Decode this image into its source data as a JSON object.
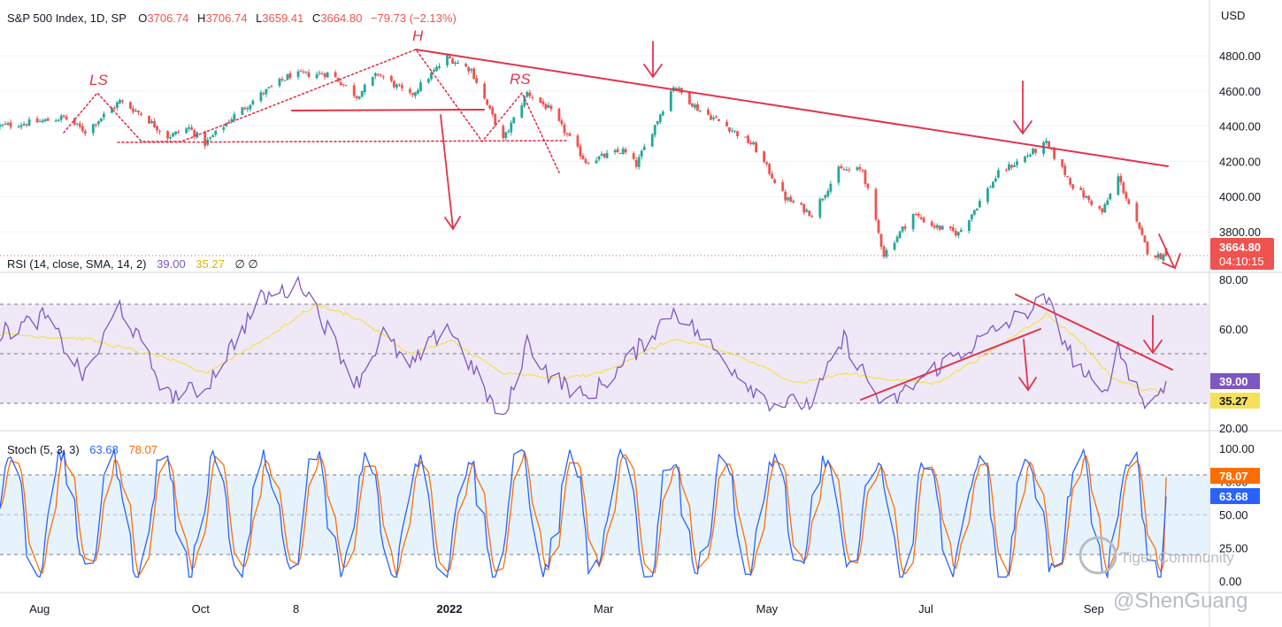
{
  "legend": {
    "main": {
      "name": "S&P 500 Index, 1D, SP",
      "o_label": "O",
      "o": "3706.74",
      "h_label": "H",
      "h": "3706.74",
      "l_label": "L",
      "l": "3659.41",
      "c_label": "C",
      "c": "3664.80",
      "change": "−79.73 (−2.13%)"
    },
    "rsi": {
      "name": "RSI (14, close, SMA, 14, 2)",
      "v1": "39.00",
      "v2": "35.27",
      "extra": "∅ ∅"
    },
    "stoch": {
      "name": "Stoch (5, 3, 3)",
      "v1": "63.68",
      "v2": "78.07"
    }
  },
  "axis": {
    "currency": "USD",
    "price_ticks": [
      "4800.00",
      "4600.00",
      "4400.00",
      "4200.00",
      "4000.00",
      "3800.00"
    ],
    "rsi_ticks": [
      "80.00",
      "60.00",
      "20.00"
    ],
    "stoch_ticks": [
      "100.00",
      "75.00",
      "50.00",
      "25.00",
      "0.00"
    ],
    "x_ticks": [
      "Aug",
      "Oct",
      "8",
      "2022",
      "Mar",
      "May",
      "Jul",
      "Sep"
    ]
  },
  "badges": {
    "price": "3664.80",
    "countdown": "04:10:15",
    "rsi1": "39.00",
    "rsi2": "35.27",
    "stoch1": "78.07",
    "stoch2": "63.68"
  },
  "patterns": {
    "ls": "LS",
    "h": "H",
    "rs": "RS"
  },
  "watermark": {
    "line1": "Tiger Community",
    "line2": "@ShenGuang"
  },
  "colors": {
    "up": "#26a69a",
    "down": "#ef5350",
    "rsi": "#7e57c2",
    "rsi_ma": "#f5e05a",
    "stoch_k": "#2962ff",
    "stoch_d": "#ff6d00",
    "annot": "#e2334a"
  },
  "chart_data": [
    {
      "type": "candlestick",
      "title": "S&P 500 Index, 1D, SP",
      "x_range": [
        "2021-07-19",
        "2022-09-30"
      ],
      "ylim": [
        3550,
        4900
      ],
      "anchors": [
        [
          "2021-07-19",
          4400
        ],
        [
          "2021-08-05",
          4430
        ],
        [
          "2021-08-12",
          4450
        ],
        [
          "2021-08-20",
          4370
        ],
        [
          "2021-09-02",
          4540
        ],
        [
          "2021-09-10",
          4470
        ],
        [
          "2021-09-20",
          4340
        ],
        [
          "2021-09-28",
          4390
        ],
        [
          "2021-10-04",
          4300
        ],
        [
          "2021-10-15",
          4460
        ],
        [
          "2021-10-25",
          4580
        ],
        [
          "2021-11-05",
          4690
        ],
        [
          "2021-11-20",
          4700
        ],
        [
          "2021-11-30",
          4570
        ],
        [
          "2021-12-08",
          4700
        ],
        [
          "2021-12-20",
          4570
        ],
        [
          "2022-01-03",
          4790
        ],
        [
          "2022-01-12",
          4720
        ],
        [
          "2022-01-24",
          4320
        ],
        [
          "2022-02-02",
          4590
        ],
        [
          "2022-02-10",
          4500
        ],
        [
          "2022-02-24",
          4200
        ],
        [
          "2022-03-10",
          4260
        ],
        [
          "2022-03-15",
          4180
        ],
        [
          "2022-03-29",
          4630
        ],
        [
          "2022-04-07",
          4500
        ],
        [
          "2022-04-18",
          4400
        ],
        [
          "2022-04-28",
          4290
        ],
        [
          "2022-05-10",
          3990
        ],
        [
          "2022-05-20",
          3900
        ],
        [
          "2022-05-30",
          4150
        ],
        [
          "2022-06-08",
          4150
        ],
        [
          "2022-06-16",
          3670
        ],
        [
          "2022-06-27",
          3900
        ],
        [
          "2022-07-05",
          3830
        ],
        [
          "2022-07-14",
          3790
        ],
        [
          "2022-07-29",
          4130
        ],
        [
          "2022-08-16",
          4300
        ],
        [
          "2022-08-26",
          4060
        ],
        [
          "2022-09-06",
          3910
        ],
        [
          "2022-09-12",
          4110
        ],
        [
          "2022-09-23",
          3690
        ],
        [
          "2022-09-27",
          3660
        ],
        [
          "2022-09-30",
          3664.8
        ]
      ],
      "last": {
        "open": 3706.74,
        "high": 3706.74,
        "low": 3659.41,
        "close": 3664.8
      }
    },
    {
      "type": "line",
      "title": "RSI (14, close, SMA, 14, 2)",
      "ylim": [
        10,
        90
      ],
      "bands": [
        30,
        50,
        70
      ],
      "series": [
        {
          "name": "RSI",
          "anchors": [
            [
              "2021-07-19",
              58
            ],
            [
              "2021-08-05",
              65
            ],
            [
              "2021-08-20",
              40
            ],
            [
              "2021-09-02",
              70
            ],
            [
              "2021-09-20",
              33
            ],
            [
              "2021-10-04",
              36
            ],
            [
              "2021-10-25",
              72
            ],
            [
              "2021-11-10",
              78
            ],
            [
              "2021-11-30",
              38
            ],
            [
              "2021-12-10",
              58
            ],
            [
              "2021-12-20",
              44
            ],
            [
              "2022-01-03",
              62
            ],
            [
              "2022-01-24",
              22
            ],
            [
              "2022-02-02",
              55
            ],
            [
              "2022-02-10",
              42
            ],
            [
              "2022-02-24",
              32
            ],
            [
              "2022-03-10",
              45
            ],
            [
              "2022-03-29",
              68
            ],
            [
              "2022-04-28",
              36
            ],
            [
              "2022-05-05",
              30
            ],
            [
              "2022-05-20",
              30
            ],
            [
              "2022-06-01",
              56
            ],
            [
              "2022-06-16",
              28
            ],
            [
              "2022-07-05",
              44
            ],
            [
              "2022-08-16",
              72
            ],
            [
              "2022-08-26",
              48
            ],
            [
              "2022-09-06",
              32
            ],
            [
              "2022-09-12",
              52
            ],
            [
              "2022-09-23",
              28
            ],
            [
              "2022-09-30",
              39
            ]
          ]
        },
        {
          "name": "MA",
          "anchors": [
            [
              "2021-07-19",
              58
            ],
            [
              "2021-08-20",
              56
            ],
            [
              "2021-09-20",
              48
            ],
            [
              "2021-10-04",
              42
            ],
            [
              "2021-10-25",
              55
            ],
            [
              "2021-11-15",
              70
            ],
            [
              "2021-12-01",
              64
            ],
            [
              "2021-12-20",
              50
            ],
            [
              "2022-01-05",
              55
            ],
            [
              "2022-01-24",
              42
            ],
            [
              "2022-02-15",
              40
            ],
            [
              "2022-03-01",
              42
            ],
            [
              "2022-03-29",
              56
            ],
            [
              "2022-04-20",
              50
            ],
            [
              "2022-05-15",
              38
            ],
            [
              "2022-06-01",
              42
            ],
            [
              "2022-06-16",
              40
            ],
            [
              "2022-07-05",
              38
            ],
            [
              "2022-07-25",
              50
            ],
            [
              "2022-08-16",
              66
            ],
            [
              "2022-08-28",
              56
            ],
            [
              "2022-09-10",
              40
            ],
            [
              "2022-09-23",
              35
            ],
            [
              "2022-09-30",
              35.27
            ]
          ]
        }
      ]
    },
    {
      "type": "line",
      "title": "Stoch (5, 3, 3)",
      "ylim": [
        -5,
        105
      ],
      "bands": [
        20,
        80
      ],
      "series": [
        {
          "name": "%K",
          "last": 63.68
        },
        {
          "name": "%D",
          "last": 78.07
        }
      ]
    }
  ]
}
